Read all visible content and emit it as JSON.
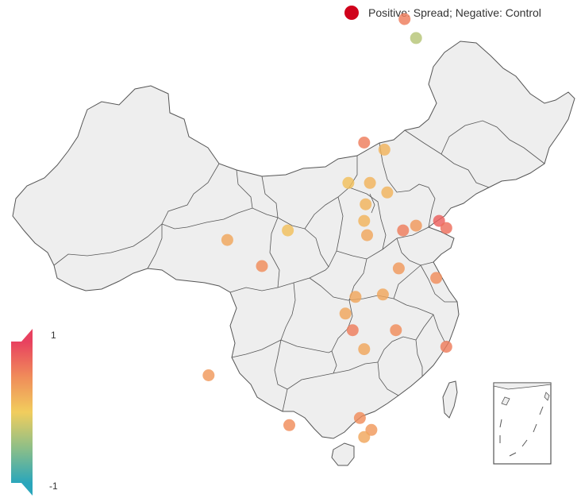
{
  "legend": {
    "label": "Positive: Spread; Negative: Control",
    "dot_color": "#d0021b"
  },
  "colorscale": {
    "max_label": "1",
    "min_label": "-1",
    "stops": [
      "#e8415f",
      "#f08c5a",
      "#f1cd5d",
      "#8ebf87",
      "#2aa6bb"
    ]
  },
  "map": {
    "land_color": "#eeeeee",
    "border_color": "#555555"
  },
  "points": [
    {
      "lon": 116.4,
      "lat": 39.9,
      "value": 0.6
    },
    {
      "lon": 117.2,
      "lat": 39.1,
      "value": -0.3
    },
    {
      "lon": 113.6,
      "lat": 34.7,
      "value": 0.6
    },
    {
      "lon": 115.0,
      "lat": 34.4,
      "value": 0.2
    },
    {
      "lon": 112.5,
      "lat": 33.0,
      "value": 0.1
    },
    {
      "lon": 114.0,
      "lat": 33.0,
      "value": 0.2
    },
    {
      "lon": 113.7,
      "lat": 32.1,
      "value": 0.2
    },
    {
      "lon": 115.2,
      "lat": 32.6,
      "value": 0.2
    },
    {
      "lon": 113.6,
      "lat": 31.4,
      "value": 0.2
    },
    {
      "lon": 113.8,
      "lat": 30.8,
      "value": 0.3
    },
    {
      "lon": 116.3,
      "lat": 31.0,
      "value": 0.6
    },
    {
      "lon": 117.2,
      "lat": 31.2,
      "value": 0.4
    },
    {
      "lon": 118.8,
      "lat": 31.4,
      "value": 0.8
    },
    {
      "lon": 119.3,
      "lat": 31.1,
      "value": 0.7
    },
    {
      "lon": 116.0,
      "lat": 29.4,
      "value": 0.4
    },
    {
      "lon": 118.6,
      "lat": 29.0,
      "value": 0.5
    },
    {
      "lon": 114.9,
      "lat": 28.3,
      "value": 0.3
    },
    {
      "lon": 113.0,
      "lat": 28.2,
      "value": 0.3
    },
    {
      "lon": 112.3,
      "lat": 27.5,
      "value": 0.3
    },
    {
      "lon": 112.8,
      "lat": 26.8,
      "value": 0.6
    },
    {
      "lon": 113.6,
      "lat": 26.0,
      "value": 0.3
    },
    {
      "lon": 115.8,
      "lat": 26.8,
      "value": 0.5
    },
    {
      "lon": 119.3,
      "lat": 26.1,
      "value": 0.6
    },
    {
      "lon": 108.3,
      "lat": 31.0,
      "value": 0.1
    },
    {
      "lon": 104.1,
      "lat": 30.6,
      "value": 0.3
    },
    {
      "lon": 106.5,
      "lat": 29.5,
      "value": 0.5
    },
    {
      "lon": 102.8,
      "lat": 24.9,
      "value": 0.4
    },
    {
      "lon": 108.4,
      "lat": 22.8,
      "value": 0.5
    },
    {
      "lon": 113.3,
      "lat": 23.1,
      "value": 0.5
    },
    {
      "lon": 114.1,
      "lat": 22.6,
      "value": 0.4
    },
    {
      "lon": 113.6,
      "lat": 22.3,
      "value": 0.3
    }
  ]
}
